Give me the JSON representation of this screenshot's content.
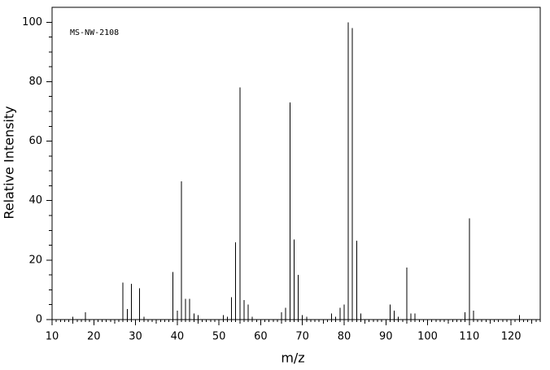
{
  "chart_data": {
    "type": "stick",
    "annotation": "MS-NW-2108",
    "x_label": "m/z",
    "y_label": "Relative Intensity",
    "x": [
      15,
      18,
      27,
      28,
      29,
      31,
      32,
      39,
      40,
      41,
      42,
      43,
      44,
      45,
      51,
      52,
      53,
      54,
      55,
      56,
      57,
      58,
      65,
      66,
      67,
      68,
      69,
      70,
      71,
      77,
      78,
      79,
      80,
      81,
      82,
      83,
      84,
      91,
      92,
      93,
      95,
      96,
      97,
      109,
      110,
      111,
      122
    ],
    "values": [
      1,
      2.5,
      12.5,
      3.5,
      12,
      10.5,
      1,
      16,
      3,
      46.5,
      7,
      7,
      2,
      1.5,
      1.5,
      1,
      7.5,
      26,
      78,
      6.5,
      5,
      1,
      2.5,
      4,
      73,
      27,
      15,
      1.5,
      1,
      2,
      1,
      4,
      5,
      100,
      98,
      26.5,
      2,
      5,
      3,
      1,
      17.5,
      2,
      2,
      2.5,
      34,
      3,
      1.5
    ],
    "color": "#000000",
    "xlim": [
      10,
      127
    ],
    "xticks": [
      10,
      20,
      30,
      40,
      50,
      60,
      70,
      80,
      90,
      100,
      110,
      120
    ],
    "ylim": [
      0,
      105
    ],
    "yticks": [
      0,
      20,
      40,
      60,
      80,
      100
    ]
  }
}
